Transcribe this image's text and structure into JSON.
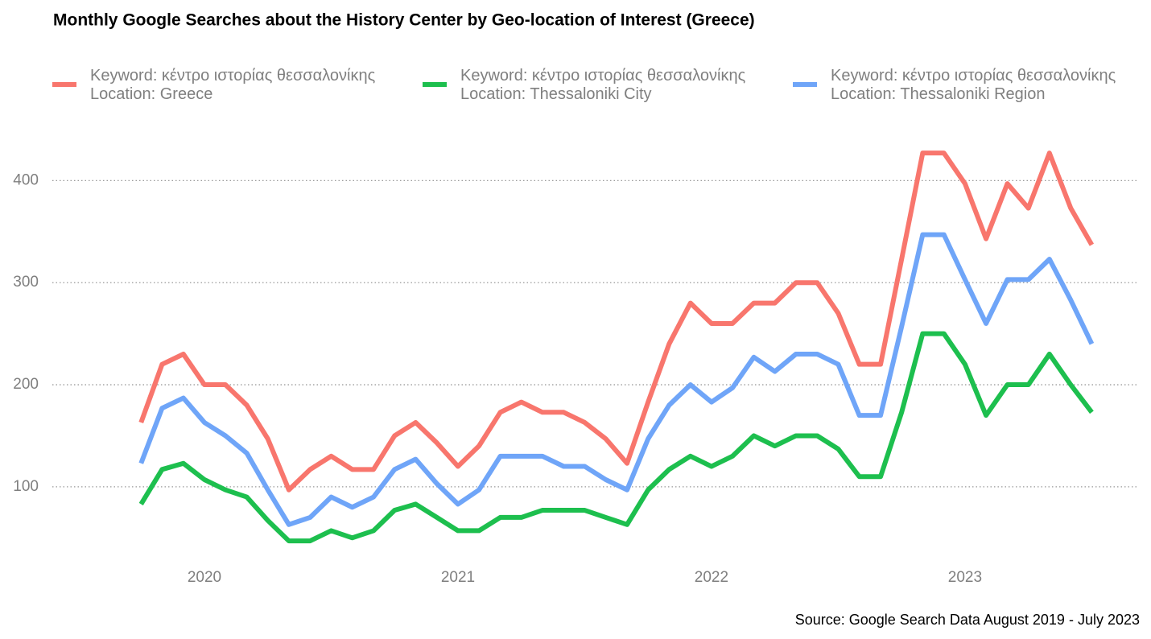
{
  "chart_data": {
    "type": "line",
    "title": "Monthly Google Searches about the History Center by Geo-location of Interest (Greece)",
    "source": "Source: Google Search Data August 2019 - July 2023",
    "x": [
      2019.75,
      2019.833,
      2019.917,
      2020,
      2020.083,
      2020.167,
      2020.25,
      2020.333,
      2020.417,
      2020.5,
      2020.583,
      2020.667,
      2020.75,
      2020.833,
      2020.917,
      2021,
      2021.083,
      2021.167,
      2021.25,
      2021.333,
      2021.417,
      2021.5,
      2021.583,
      2021.667,
      2021.75,
      2021.833,
      2021.917,
      2022,
      2022.083,
      2022.167,
      2022.25,
      2022.333,
      2022.417,
      2022.5,
      2022.583,
      2022.667,
      2022.75,
      2022.833,
      2022.917,
      2023,
      2023.083,
      2023.167,
      2023.25,
      2023.333,
      2023.417,
      2023.5
    ],
    "xlim": [
      2019.4,
      2023.686
    ],
    "xticks": [
      2020,
      2021,
      2022,
      2023
    ],
    "ylim": [
      25,
      435
    ],
    "yticks": [
      100,
      200,
      300,
      400
    ],
    "grid": true,
    "legend": "top",
    "series": [
      {
        "name": "Keyword: κέντρο ιστορίας θεσσαλονίκης\nLocation: Greece",
        "color": "#F8766D",
        "values": [
          163,
          220,
          230,
          200,
          200,
          180,
          147,
          97,
          117,
          130,
          117,
          117,
          150,
          163,
          143,
          120,
          140,
          173,
          183,
          173,
          173,
          163,
          147,
          123,
          183,
          240,
          280,
          260,
          260,
          280,
          280,
          300,
          300,
          270,
          220,
          220,
          323,
          427,
          427,
          397,
          343,
          397,
          373,
          427,
          373,
          337
        ]
      },
      {
        "name": "Keyword: κέντρο ιστορίας θεσσαλονίκης\nLocation: Thessaloniki City",
        "color": "#1DBF4E",
        "values": [
          83,
          117,
          123,
          107,
          97,
          90,
          67,
          47,
          47,
          57,
          50,
          57,
          77,
          83,
          70,
          57,
          57,
          70,
          70,
          77,
          77,
          77,
          70,
          63,
          97,
          117,
          130,
          120,
          130,
          150,
          140,
          150,
          150,
          137,
          110,
          110,
          173,
          250,
          250,
          220,
          170,
          200,
          200,
          230,
          200,
          173
        ]
      },
      {
        "name": "Keyword: κέντρο ιστορίας θεσσαλονίκης\nLocation: Thessaloniki Region",
        "color": "#6FA5F8",
        "values": [
          123,
          177,
          187,
          163,
          150,
          133,
          97,
          63,
          70,
          90,
          80,
          90,
          117,
          127,
          103,
          83,
          97,
          130,
          130,
          130,
          120,
          120,
          107,
          97,
          147,
          180,
          200,
          183,
          197,
          227,
          213,
          230,
          230,
          220,
          170,
          170,
          257,
          347,
          347,
          303,
          260,
          303,
          303,
          323,
          283,
          240
        ]
      }
    ]
  }
}
